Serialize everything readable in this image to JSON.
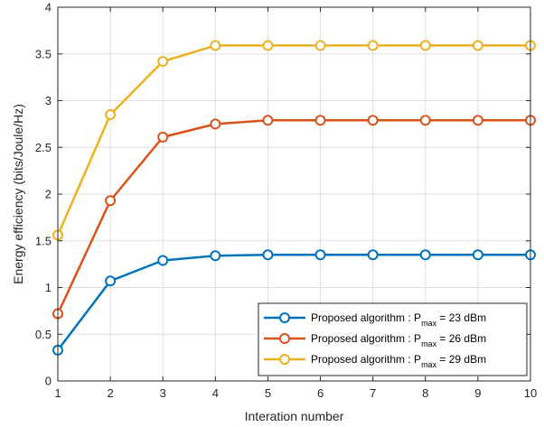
{
  "chart_data": {
    "type": "line",
    "xlabel": "Interation number",
    "ylabel": "Energy efficiency (bits/Joule/Hz)",
    "xlim": [
      1,
      10
    ],
    "ylim": [
      0,
      4
    ],
    "xticks": [
      "1",
      "2",
      "3",
      "4",
      "5",
      "6",
      "7",
      "8",
      "9",
      "10"
    ],
    "yticks": [
      "0",
      "0.5",
      "1",
      "1.5",
      "2",
      "2.5",
      "3",
      "3.5",
      "4"
    ],
    "grid": true,
    "legend_position": "bottom-right",
    "x": [
      1,
      2,
      3,
      4,
      5,
      6,
      7,
      8,
      9,
      10
    ],
    "series": [
      {
        "name_prefix": "Proposed algorithm : P",
        "name_sub": "max",
        "name_suffix": " = 23 dBm",
        "color": "#0072BD",
        "values": [
          0.33,
          1.07,
          1.29,
          1.34,
          1.35,
          1.35,
          1.35,
          1.35,
          1.35,
          1.35
        ]
      },
      {
        "name_prefix": "Proposed algorithm : P",
        "name_sub": "max",
        "name_suffix": " = 26 dBm",
        "color": "#D95319",
        "values": [
          0.72,
          1.93,
          2.61,
          2.75,
          2.79,
          2.79,
          2.79,
          2.79,
          2.79,
          2.79
        ]
      },
      {
        "name_prefix": "Proposed algorithm : P",
        "name_sub": "max",
        "name_suffix": " = 29 dBm",
        "color": "#EDB120",
        "values": [
          1.56,
          2.85,
          3.42,
          3.59,
          3.59,
          3.59,
          3.59,
          3.59,
          3.59,
          3.59
        ]
      }
    ]
  }
}
